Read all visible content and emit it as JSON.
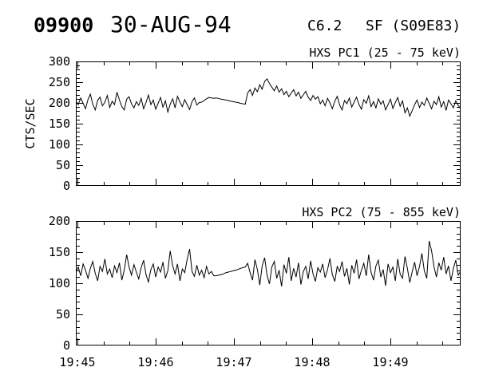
{
  "page": {
    "background": "#ffffff",
    "foreground": "#000000"
  },
  "header": {
    "event_id": "09900",
    "date": "30-AUG-94",
    "goes_class": "C6.2",
    "flare_label": "SF (S09E83)"
  },
  "time_axis": {
    "major_ticks": [
      {
        "seconds": 0,
        "label": "19:45"
      },
      {
        "seconds": 60,
        "label": "19:46"
      },
      {
        "seconds": 120,
        "label": "19:47"
      },
      {
        "seconds": 180,
        "label": "19:48"
      },
      {
        "seconds": 240,
        "label": "19:49"
      }
    ],
    "minor_step_seconds": 20,
    "end_seconds": 294,
    "labels_on": "bottom-chart-only"
  },
  "chart_data": [
    {
      "type": "line",
      "title": "HXS PC1 (25 - 75 keV)",
      "ylabel": "CTS/SEC",
      "ylim": [
        0,
        300
      ],
      "ytick_step": 50,
      "y_minor_step": 10,
      "xlim_labels": [
        "19:45",
        "19:49:54"
      ],
      "grid": false,
      "line_color": "#000000",
      "values": [
        205,
        196,
        212,
        199,
        186,
        208,
        221,
        197,
        183,
        206,
        214,
        193,
        202,
        218,
        189,
        204,
        196,
        226,
        207,
        191,
        183,
        209,
        215,
        198,
        188,
        203,
        194,
        211,
        186,
        201,
        219,
        196,
        207,
        185,
        199,
        213,
        190,
        205,
        178,
        197,
        210,
        188,
        216,
        202,
        191,
        208,
        196,
        184,
        203,
        212,
        195,
        201,
        202,
        206,
        210,
        213,
        212,
        211,
        212,
        211,
        209,
        208,
        207,
        206,
        204,
        203,
        202,
        201,
        199,
        198,
        197,
        224,
        232,
        218,
        236,
        227,
        244,
        233,
        252,
        258,
        247,
        238,
        229,
        241,
        226,
        234,
        220,
        228,
        215,
        224,
        232,
        217,
        226,
        211,
        220,
        228,
        214,
        206,
        218,
        209,
        215,
        198,
        207,
        193,
        211,
        200,
        186,
        204,
        216,
        195,
        183,
        206,
        198,
        212,
        190,
        202,
        214,
        196,
        185,
        208,
        199,
        217,
        191,
        203,
        188,
        210,
        197,
        205,
        183,
        196,
        209,
        187,
        201,
        213,
        192,
        205,
        176,
        188,
        168,
        182,
        196,
        207,
        189,
        202,
        194,
        212,
        199,
        186,
        204,
        196,
        215,
        190,
        203,
        182,
        207,
        198,
        188,
        205,
        194,
        186
      ]
    },
    {
      "type": "line",
      "title": "HXS PC2 (75 - 855 keV)",
      "ylabel": "",
      "ylim": [
        0,
        200
      ],
      "ytick_step": 50,
      "y_minor_step": 10,
      "xlim_labels": [
        "19:45",
        "19:49:54"
      ],
      "grid": false,
      "line_color": "#000000",
      "values": [
        118,
        126,
        112,
        131,
        121,
        108,
        124,
        135,
        116,
        104,
        127,
        119,
        139,
        115,
        123,
        109,
        128,
        117,
        133,
        105,
        121,
        146,
        126,
        113,
        130,
        118,
        107,
        125,
        137,
        114,
        102,
        122,
        131,
        110,
        126,
        118,
        134,
        108,
        120,
        152,
        128,
        115,
        131,
        104,
        123,
        117,
        138,
        155,
        119,
        111,
        129,
        113,
        121,
        109,
        127,
        115,
        119,
        112,
        112,
        113,
        114,
        115,
        117,
        118,
        119,
        120,
        121,
        122,
        124,
        125,
        126,
        132,
        117,
        105,
        138,
        122,
        97,
        128,
        141,
        113,
        99,
        126,
        135,
        108,
        121,
        95,
        130,
        116,
        142,
        104,
        124,
        110,
        133,
        98,
        119,
        127,
        107,
        136,
        115,
        103,
        125,
        118,
        131,
        109,
        122,
        140,
        114,
        103,
        127,
        119,
        135,
        111,
        124,
        98,
        129,
        116,
        138,
        107,
        121,
        132,
        112,
        146,
        118,
        105,
        128,
        137,
        110,
        122,
        96,
        131,
        117,
        126,
        104,
        139,
        115,
        108,
        143,
        124,
        101,
        119,
        134,
        112,
        127,
        148,
        120,
        108,
        168,
        152,
        126,
        110,
        133,
        121,
        142,
        115,
        128,
        104,
        124,
        137,
        113,
        119
      ]
    }
  ]
}
